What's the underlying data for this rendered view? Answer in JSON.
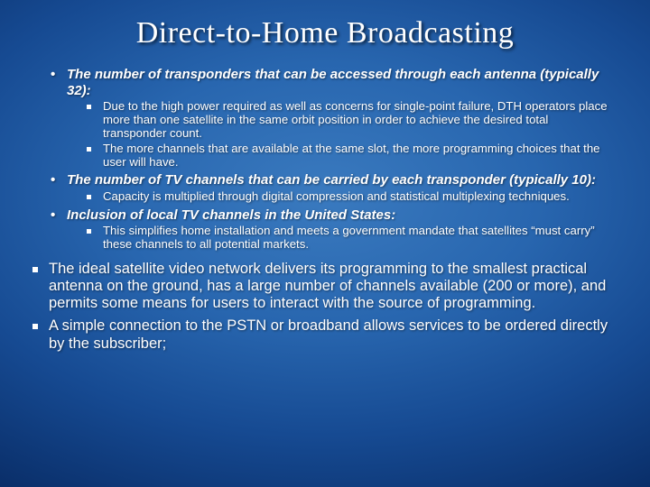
{
  "title": "Direct-to-Home Broadcasting",
  "points": [
    {
      "text": "The number of transponders that can be accessed through each antenna (typically 32):",
      "sub": [
        "Due to the high power required as well as concerns for single-point failure, DTH operators place more than one satellite in the same orbit position in order to achieve the desired total transponder count.",
        "The more channels that are available at the same slot, the more programming choices that the user will have."
      ]
    },
    {
      "text": "The number of TV channels that can be carried by each transponder (typically 10):",
      "sub": [
        "Capacity is multiplied through digital compression and statistical multiplexing techniques."
      ]
    },
    {
      "text": "Inclusion of local TV channels in the United States:",
      "sub": [
        "This simplifies home installation and meets a government mandate that satellites “must carry” these channels to all potential markets."
      ]
    }
  ],
  "bottom": [
    "The ideal satellite video network delivers its programming to the smallest practical antenna on the ground, has a large number of channels available (200 or more), and permits some means for users to interact with the source of programming.",
    "A simple connection to the PSTN or broadband allows services to be ordered directly by the subscriber;"
  ]
}
